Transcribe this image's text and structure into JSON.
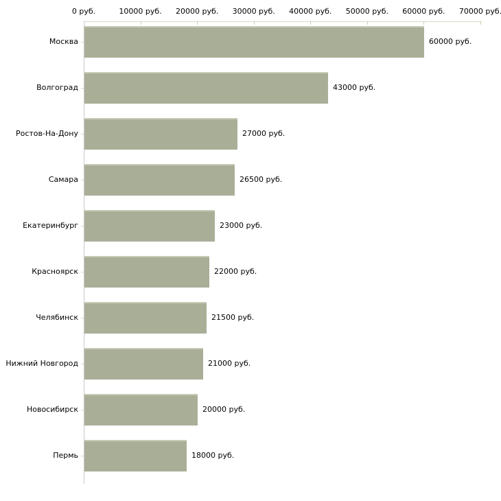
{
  "chart_data": {
    "type": "bar",
    "orientation": "horizontal",
    "title": "",
    "xlabel": "",
    "ylabel": "",
    "unit": "руб.",
    "categories": [
      "Москва",
      "Волгоград",
      "Ростов-На-Дону",
      "Самара",
      "Екатеринбург",
      "Красноярск",
      "Челябинск",
      "Нижний Новгород",
      "Новосибирск",
      "Пермь"
    ],
    "values": [
      60000,
      43000,
      27000,
      26500,
      23000,
      22000,
      21500,
      21000,
      20000,
      18000
    ],
    "value_labels": [
      "60000 руб.",
      "43000 руб.",
      "27000 руб.",
      "26500 руб.",
      "23000 руб.",
      "22000 руб.",
      "21500 руб.",
      "21000 руб.",
      "20000 руб.",
      "18000 руб."
    ],
    "xlim": [
      0,
      70000
    ],
    "x_ticks": [
      0,
      10000,
      20000,
      30000,
      40000,
      50000,
      60000,
      70000
    ],
    "x_tick_labels": [
      "0 руб.",
      "10000 руб.",
      "20000 руб.",
      "30000 руб.",
      "40000 руб.",
      "50000 руб.",
      "60000 руб.",
      "70000 руб."
    ],
    "axis_position": "top",
    "grid": false,
    "legend": null,
    "colors": {
      "bar_fill": "#a9af97",
      "bar_highlight": "#c6cab6",
      "axis_line": "#d6d6c4",
      "axis_vline": "#c9c9c9",
      "tick_mark": "#ccccb2",
      "text": "#000000",
      "background": "#ffffff"
    }
  }
}
